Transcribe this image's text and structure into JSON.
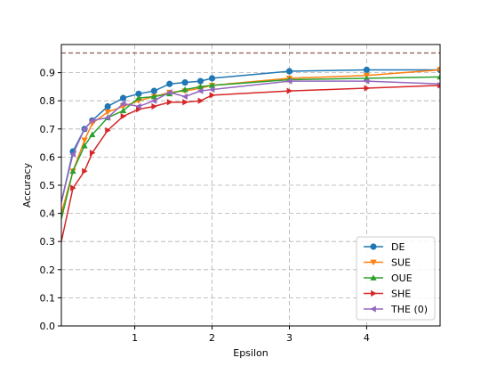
{
  "chart_data": {
    "type": "line",
    "title": "",
    "xlabel": "Epsilon",
    "ylabel": "Accuracy",
    "xlim": [
      0.05,
      4.95
    ],
    "ylim": [
      0.0,
      1.0
    ],
    "x_ticks": [
      1,
      2,
      3,
      4
    ],
    "y_ticks": [
      0.0,
      0.1,
      0.2,
      0.3,
      0.4,
      0.5,
      0.6,
      0.7,
      0.8,
      0.9
    ],
    "x_tick_labels": [
      "1",
      "2",
      "3",
      "4"
    ],
    "y_tick_labels": [
      "0.0",
      "0.1",
      "0.2",
      "0.3",
      "0.4",
      "0.5",
      "0.6",
      "0.7",
      "0.8",
      "0.9"
    ],
    "grid": true,
    "legend_position": "lower-right",
    "reference_line": {
      "y": 0.97,
      "color": "#8c564b",
      "style": "dashed"
    },
    "x": [
      0.05,
      0.2,
      0.35,
      0.45,
      0.65,
      0.85,
      1.05,
      1.25,
      1.45,
      1.65,
      1.85,
      2.0,
      3.0,
      4.0,
      4.95
    ],
    "series": [
      {
        "name": "DE",
        "color": "#1f77b4",
        "marker": "circle",
        "values": [
          0.44,
          0.62,
          0.7,
          0.73,
          0.78,
          0.81,
          0.825,
          0.835,
          0.86,
          0.865,
          0.87,
          0.88,
          0.905,
          0.91,
          0.91
        ]
      },
      {
        "name": "SUE",
        "color": "#ff7f0e",
        "marker": "triangle-down",
        "values": [
          0.4,
          0.55,
          0.66,
          0.72,
          0.76,
          0.78,
          0.8,
          0.815,
          0.83,
          0.835,
          0.845,
          0.855,
          0.88,
          0.89,
          0.91
        ]
      },
      {
        "name": "OUE",
        "color": "#2ca02c",
        "marker": "triangle-up",
        "values": [
          0.38,
          0.55,
          0.64,
          0.68,
          0.74,
          0.765,
          0.81,
          0.815,
          0.825,
          0.84,
          0.85,
          0.855,
          0.875,
          0.88,
          0.885
        ]
      },
      {
        "name": "SHE",
        "color": "#d62728",
        "marker": "triangle-right",
        "values": [
          0.3,
          0.49,
          0.55,
          0.615,
          0.695,
          0.745,
          0.77,
          0.78,
          0.795,
          0.795,
          0.8,
          0.82,
          0.835,
          0.845,
          0.855
        ]
      },
      {
        "name": "THE (0)",
        "color": "#9467bd",
        "marker": "triangle-left",
        "values": [
          0.44,
          0.61,
          0.7,
          0.73,
          0.74,
          0.79,
          0.78,
          0.8,
          0.83,
          0.815,
          0.835,
          0.84,
          0.87,
          0.87,
          0.86
        ]
      }
    ]
  }
}
